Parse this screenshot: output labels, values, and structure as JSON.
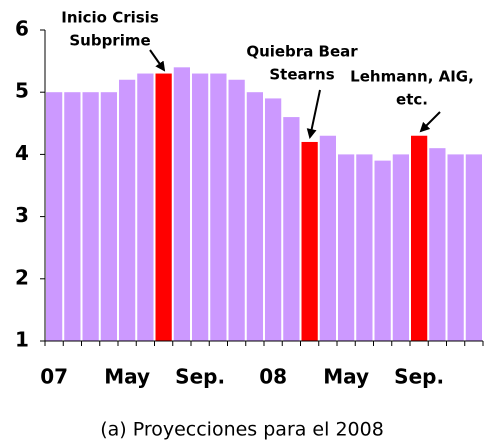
{
  "chart_data": {
    "type": "bar",
    "categories": [
      "07",
      null,
      null,
      null,
      "May",
      null,
      null,
      null,
      "Sep.",
      null,
      null,
      null,
      "08",
      null,
      null,
      null,
      "May",
      null,
      null,
      null,
      "Sep.",
      null,
      null,
      null
    ],
    "values": [
      5.0,
      5.0,
      5.0,
      5.0,
      5.2,
      5.3,
      5.3,
      5.4,
      5.3,
      5.3,
      5.2,
      5.0,
      4.9,
      4.6,
      4.2,
      4.3,
      4.0,
      4.0,
      3.9,
      4.0,
      4.3,
      4.1,
      4.0,
      4.0
    ],
    "colors": [
      "#cc99ff",
      "#cc99ff",
      "#cc99ff",
      "#cc99ff",
      "#cc99ff",
      "#cc99ff",
      "#ff0000",
      "#cc99ff",
      "#cc99ff",
      "#cc99ff",
      "#cc99ff",
      "#cc99ff",
      "#cc99ff",
      "#cc99ff",
      "#ff0000",
      "#cc99ff",
      "#cc99ff",
      "#cc99ff",
      "#cc99ff",
      "#cc99ff",
      "#ff0000",
      "#cc99ff",
      "#cc99ff",
      "#cc99ff"
    ],
    "ylim": [
      1,
      6
    ],
    "yticks": [
      1,
      2,
      3,
      4,
      5,
      6
    ],
    "grid": false,
    "annotations": [
      [
        "Inicio Crisis",
        "Subprime"
      ],
      [
        "Quiebra Bear",
        "Stearns"
      ],
      [
        "Lehmann, AIG,",
        "etc."
      ]
    ],
    "caption": "(a) Proyecciones para el 2008"
  }
}
